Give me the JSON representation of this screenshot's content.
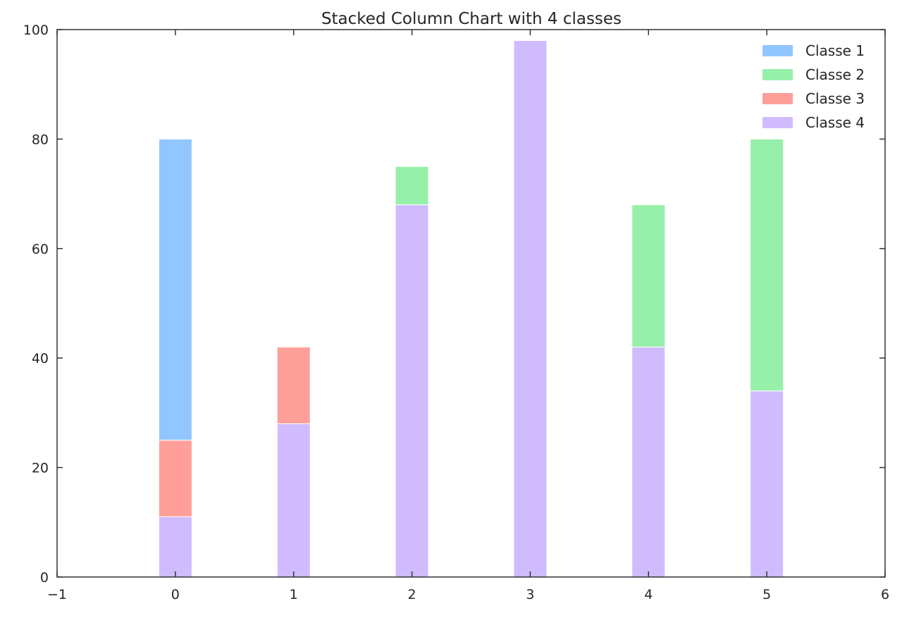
{
  "chart_data": {
    "type": "bar",
    "stacked": true,
    "title": "Stacked Column Chart with 4 classes",
    "xlabel": "",
    "ylabel": "",
    "categories": [
      0,
      1,
      2,
      3,
      4,
      5
    ],
    "xlim": [
      -1,
      6
    ],
    "ylim": [
      0,
      100
    ],
    "xticks": [
      "−1",
      "0",
      "1",
      "2",
      "3",
      "4",
      "5",
      "6"
    ],
    "yticks": [
      "0",
      "20",
      "40",
      "60",
      "80",
      "100"
    ],
    "grid": false,
    "legend_position": "top-right",
    "stack_order": [
      "Classe 4",
      "Classe 3",
      "Classe 2",
      "Classe 1"
    ],
    "series": [
      {
        "name": "Classe 1",
        "color": "#92c6ff",
        "values": [
          55,
          0,
          0,
          0,
          0,
          0
        ]
      },
      {
        "name": "Classe 2",
        "color": "#97f0aa",
        "values": [
          0,
          0,
          7,
          0,
          26,
          46
        ]
      },
      {
        "name": "Classe 3",
        "color": "#ff9f9a",
        "values": [
          14,
          14,
          0,
          0,
          0,
          0
        ]
      },
      {
        "name": "Classe 4",
        "color": "#d0bbff",
        "values": [
          11,
          28,
          68,
          98,
          42,
          34
        ]
      }
    ]
  }
}
